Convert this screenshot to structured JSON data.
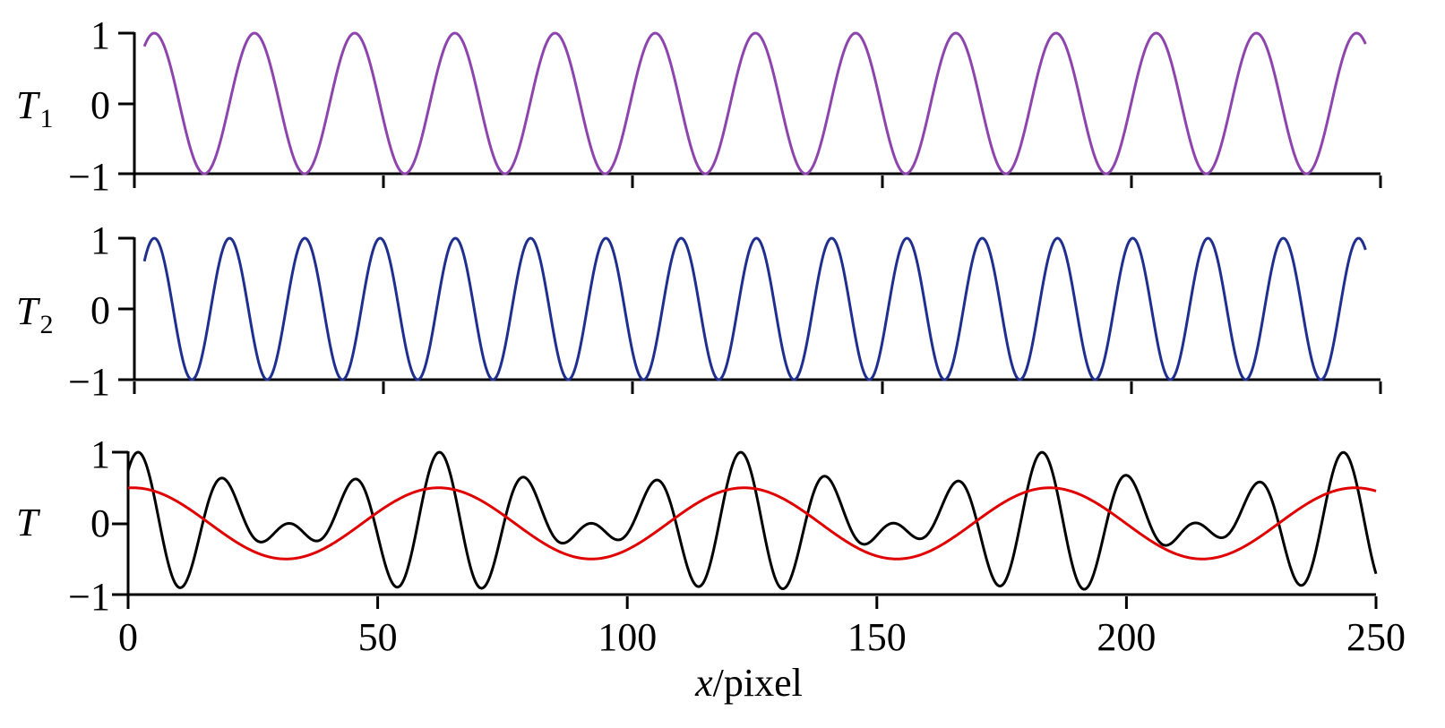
{
  "chart_data": [
    {
      "type": "line",
      "panel_label": "T",
      "panel_subscript": "1",
      "xlim": [
        0,
        250
      ],
      "ylim": [
        -1,
        1
      ],
      "yticks": [
        "1",
        "0",
        "−1"
      ],
      "x_range": [
        2,
        247
      ],
      "series": [
        {
          "color": "#8e44ad",
          "function": "cos",
          "period": 20.1,
          "phase_x": 4,
          "amplitude": 1
        }
      ]
    },
    {
      "type": "line",
      "panel_label": "T",
      "panel_subscript": "2",
      "xlim": [
        0,
        250
      ],
      "ylim": [
        -1,
        1
      ],
      "yticks": [
        "1",
        "0",
        "−1"
      ],
      "x_range": [
        2,
        247
      ],
      "series": [
        {
          "color": "#1f2f8f",
          "function": "cos",
          "period": 15.1,
          "phase_x": 4,
          "amplitude": 1
        }
      ]
    },
    {
      "type": "line",
      "panel_label": "T",
      "panel_subscript": "",
      "xlim": [
        0,
        250
      ],
      "ylim": [
        -1,
        1
      ],
      "yticks": [
        "1",
        "0",
        "−1"
      ],
      "xticks": [
        "0",
        "50",
        "100",
        "150",
        "200",
        "250"
      ],
      "xtick_values": [
        0,
        50,
        100,
        150,
        200,
        250
      ],
      "xlabel_italic": "x",
      "xlabel_rest": "/pixel",
      "x_range": [
        0,
        250
      ],
      "series": [
        {
          "color": "#000000",
          "function": "sum",
          "period1": 20.1,
          "period2": 15.1,
          "phase_x": 2,
          "amplitude": 0.5
        },
        {
          "color": "#e00000",
          "function": "cos",
          "period": 61.2,
          "phase_x": 1,
          "amplitude": 0.5
        }
      ]
    }
  ]
}
